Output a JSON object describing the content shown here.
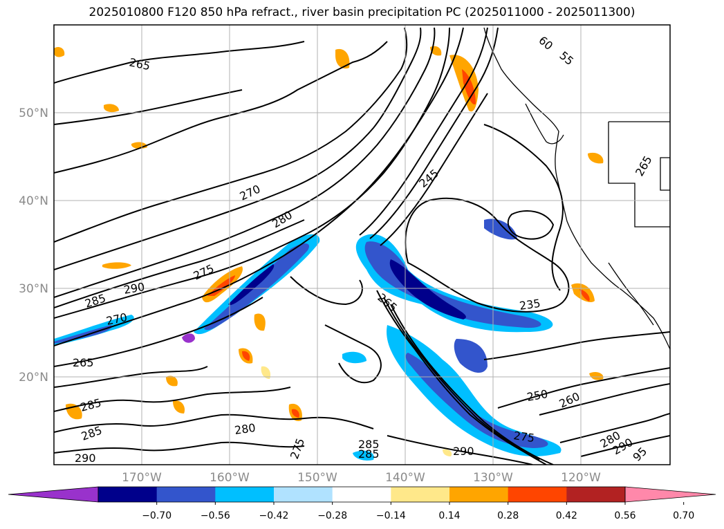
{
  "title": "2025010800 F120 850 hPa refract., river basin precipitation PC (2025011000 - 2025011300)",
  "lat_labels": [
    "50°N",
    "40°N",
    "30°N",
    "20°N"
  ],
  "lon_labels": [
    "170°W",
    "160°W",
    "150°W",
    "140°W",
    "130°W",
    "120°W"
  ],
  "contour_labels": [
    "265",
    "270",
    "280",
    "275",
    "290",
    "285",
    "270",
    "265",
    "245",
    "265",
    "235",
    "250",
    "260",
    "275",
    "290",
    "280",
    "290",
    "285",
    "285",
    "275",
    "280",
    "290",
    "95",
    "60",
    "55",
    "265",
    "285",
    "285"
  ],
  "colorbar": {
    "ticks": [
      "−0.70",
      "−0.56",
      "−0.42",
      "−0.28",
      "−0.14",
      "0.14",
      "0.28",
      "0.42",
      "0.56",
      "0.70"
    ],
    "colors": [
      "#9932cc",
      "#00008b",
      "#3355cc",
      "#00bfff",
      "#b0e2ff",
      "#ffffff",
      "#ffe88a",
      "#ffa500",
      "#ff4500",
      "#b22222",
      "#ff88aa"
    ]
  },
  "colors": {
    "contour": "#000000",
    "grid": "#b0b0b0",
    "coast": "#000000"
  }
}
